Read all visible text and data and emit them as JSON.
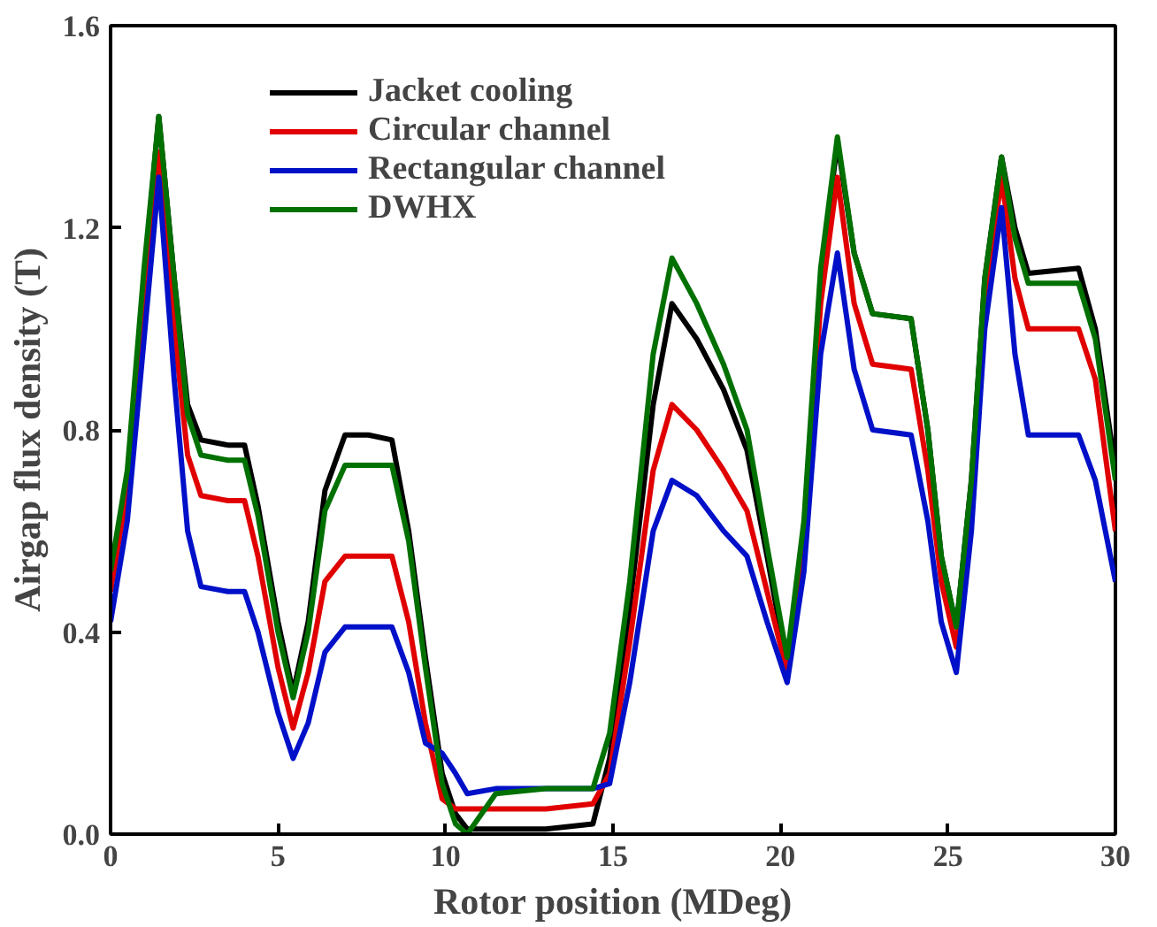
{
  "chart_data": {
    "type": "line",
    "xlabel": "Rotor position (MDeg)",
    "ylabel": "Airgap flux density (T)",
    "x": [
      0,
      0.5,
      1.0,
      1.44,
      1.9,
      2.3,
      2.7,
      3.5,
      4.0,
      4.4,
      5.0,
      5.45,
      5.9,
      6.4,
      7.0,
      7.7,
      8.4,
      8.9,
      9.4,
      9.9,
      10.3,
      10.65,
      11.5,
      13,
      14.4,
      14.9,
      15.5,
      16.2,
      16.76,
      17.5,
      18.3,
      19.0,
      19.6,
      20.2,
      20.7,
      21.2,
      21.7,
      22.2,
      22.75,
      23.9,
      24.4,
      24.8,
      25.25,
      25.7,
      26.1,
      26.6,
      27.0,
      27.4,
      28.9,
      29.4,
      30
    ],
    "series": [
      {
        "name": "Jacket cooling",
        "color": "#000000",
        "values": [
          0.5,
          0.7,
          1.1,
          1.42,
          1.1,
          0.85,
          0.78,
          0.77,
          0.77,
          0.65,
          0.42,
          0.28,
          0.42,
          0.68,
          0.79,
          0.79,
          0.78,
          0.6,
          0.35,
          0.12,
          0.04,
          0.01,
          0.01,
          0.01,
          0.02,
          0.15,
          0.45,
          0.85,
          1.05,
          0.98,
          0.88,
          0.76,
          0.55,
          0.33,
          0.6,
          1.1,
          1.37,
          1.15,
          1.03,
          1.02,
          0.8,
          0.55,
          0.41,
          0.7,
          1.1,
          1.34,
          1.2,
          1.11,
          1.12,
          1.0,
          0.72
        ]
      },
      {
        "name": "Circular channel",
        "color": "#e00000",
        "values": [
          0.48,
          0.68,
          1.05,
          1.35,
          1.0,
          0.75,
          0.67,
          0.66,
          0.66,
          0.55,
          0.33,
          0.21,
          0.32,
          0.5,
          0.55,
          0.55,
          0.55,
          0.42,
          0.22,
          0.07,
          0.05,
          0.05,
          0.05,
          0.05,
          0.06,
          0.12,
          0.38,
          0.72,
          0.85,
          0.8,
          0.72,
          0.64,
          0.48,
          0.32,
          0.58,
          1.05,
          1.3,
          1.05,
          0.93,
          0.92,
          0.72,
          0.5,
          0.37,
          0.65,
          1.05,
          1.3,
          1.1,
          1.0,
          1.0,
          0.9,
          0.6
        ]
      },
      {
        "name": "Rectangular channel",
        "color": "#0010c8",
        "values": [
          0.42,
          0.62,
          0.98,
          1.3,
          0.9,
          0.6,
          0.49,
          0.48,
          0.48,
          0.4,
          0.24,
          0.15,
          0.22,
          0.36,
          0.41,
          0.41,
          0.41,
          0.32,
          0.18,
          0.16,
          0.12,
          0.08,
          0.09,
          0.09,
          0.09,
          0.1,
          0.3,
          0.6,
          0.7,
          0.67,
          0.6,
          0.55,
          0.42,
          0.3,
          0.52,
          0.95,
          1.15,
          0.92,
          0.8,
          0.79,
          0.62,
          0.42,
          0.32,
          0.6,
          1.0,
          1.24,
          0.95,
          0.79,
          0.79,
          0.7,
          0.5
        ]
      },
      {
        "name": "DWHX",
        "color": "#007000",
        "values": [
          0.52,
          0.72,
          1.12,
          1.42,
          1.1,
          0.83,
          0.75,
          0.74,
          0.74,
          0.63,
          0.4,
          0.27,
          0.4,
          0.64,
          0.73,
          0.73,
          0.73,
          0.58,
          0.33,
          0.1,
          0.02,
          0.0,
          0.08,
          0.09,
          0.09,
          0.2,
          0.5,
          0.95,
          1.14,
          1.05,
          0.93,
          0.8,
          0.57,
          0.35,
          0.62,
          1.12,
          1.38,
          1.15,
          1.03,
          1.02,
          0.8,
          0.55,
          0.41,
          0.7,
          1.1,
          1.34,
          1.18,
          1.09,
          1.09,
          0.98,
          0.7
        ]
      }
    ],
    "xlim": [
      0,
      30
    ],
    "ylim": [
      0,
      1.6
    ],
    "xticks": [
      0,
      5,
      10,
      15,
      20,
      25,
      30
    ],
    "yticks": [
      {
        "value": 0,
        "label": "0.0"
      },
      {
        "value": 0.4,
        "label": "0.4"
      },
      {
        "value": 0.8,
        "label": "0.8"
      },
      {
        "value": 1.2,
        "label": "1.2"
      },
      {
        "value": 1.6,
        "label": "1.6"
      }
    ],
    "legend": "top left",
    "grid": false,
    "line_style": "solid",
    "marker": "none"
  }
}
